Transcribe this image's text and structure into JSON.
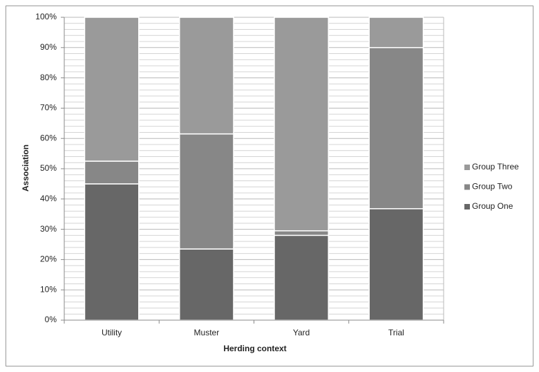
{
  "chart_data": {
    "type": "stacked_bar",
    "x_label": "Herding context",
    "y_label": "Association",
    "categories": [
      "Utility",
      "Muster",
      "Yard",
      "Trial"
    ],
    "series": [
      {
        "name": "Group One",
        "color": "#676767",
        "values": [
          45,
          23.5,
          28,
          36.8
        ]
      },
      {
        "name": "Group Two",
        "color": "#878787",
        "values": [
          7.5,
          38,
          1.5,
          53.2
        ]
      },
      {
        "name": "Group Three",
        "color": "#9a9a9a",
        "values": [
          47.5,
          38.5,
          70.5,
          10
        ]
      }
    ],
    "ylim": [
      0,
      100
    ],
    "yticks": [
      {
        "value": 0,
        "label": "0%"
      },
      {
        "value": 10,
        "label": "10%"
      },
      {
        "value": 20,
        "label": "20%"
      },
      {
        "value": 30,
        "label": "30%"
      },
      {
        "value": 40,
        "label": "40%"
      },
      {
        "value": 50,
        "label": "50%"
      },
      {
        "value": 60,
        "label": "60%"
      },
      {
        "value": 70,
        "label": "70%"
      },
      {
        "value": 80,
        "label": "80%"
      },
      {
        "value": 90,
        "label": "90%"
      },
      {
        "value": 100,
        "label": "100%"
      }
    ],
    "grid": true,
    "legend": "right"
  }
}
